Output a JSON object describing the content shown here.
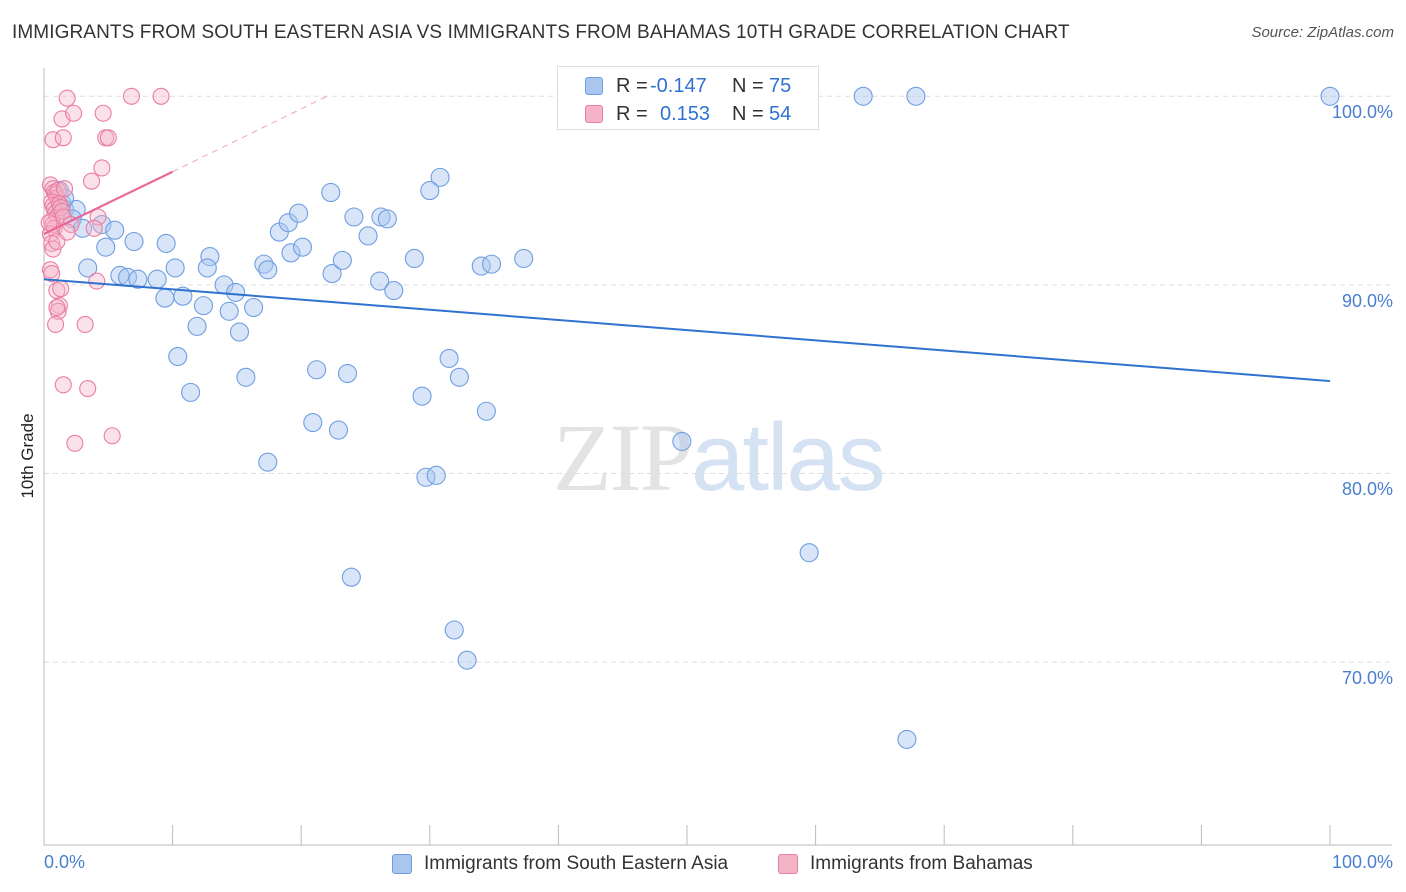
{
  "title": "IMMIGRANTS FROM SOUTH EASTERN ASIA VS IMMIGRANTS FROM BAHAMAS 10TH GRADE CORRELATION CHART",
  "source": "Source: ZipAtlas.com",
  "watermark": {
    "zip": "ZIP",
    "atlas": "atlas"
  },
  "legend_top": {
    "rows": [
      {
        "r_label": "R =",
        "r_value": "-0.147",
        "n_label": "N =",
        "n_value": "75"
      },
      {
        "r_label": "R =",
        "r_value": "0.153",
        "n_label": "N =",
        "n_value": "54"
      }
    ]
  },
  "legend_bottom": {
    "items": [
      {
        "label": "Immigrants from South Eastern Asia"
      },
      {
        "label": "Immigrants from Bahamas"
      }
    ]
  },
  "colors": {
    "blue_fill": "#a9c6ef",
    "blue_stroke": "#6f9ee0",
    "blue_line": "#2f72d0",
    "pink_fill": "#f5b3c8",
    "pink_stroke": "#ea7ea3",
    "pink_line": "#e8689a",
    "tick_label": "#4a7fd0",
    "grid": "#dddddd"
  },
  "chart_data": {
    "type": "scatter",
    "title": "IMMIGRANTS FROM SOUTH EASTERN ASIA VS IMMIGRANTS FROM BAHAMAS 10TH GRADE CORRELATION CHART",
    "xlabel": "",
    "ylabel": "10th Grade",
    "xlim": [
      0,
      100
    ],
    "ylim": [
      60.3,
      101.5
    ],
    "x_tick_labels": [
      {
        "value": 0,
        "label": "0.0%"
      },
      {
        "value": 100,
        "label": "100.0%"
      }
    ],
    "y_tick_labels": [
      {
        "value": 100,
        "label": "100.0%"
      },
      {
        "value": 90,
        "label": "90.0%"
      },
      {
        "value": 80,
        "label": "80.0%"
      },
      {
        "value": 70,
        "label": "70.0%"
      }
    ],
    "grid": true,
    "legend_position": "top-center",
    "series": [
      {
        "name": "Immigrants from South Eastern Asia",
        "color": "blue",
        "trend": {
          "x0": 0,
          "y0": 90.3,
          "x1": 100,
          "y1": 84.9
        },
        "points": [
          [
            1.2,
            95.0
          ],
          [
            1.4,
            94.3
          ],
          [
            1.6,
            94.0
          ],
          [
            2.5,
            94.0
          ],
          [
            2.2,
            93.5
          ],
          [
            3.0,
            93.0
          ],
          [
            4.8,
            92.0
          ],
          [
            4.5,
            93.2
          ],
          [
            5.5,
            92.9
          ],
          [
            7.0,
            92.3
          ],
          [
            9.5,
            92.2
          ],
          [
            3.4,
            90.9
          ],
          [
            5.9,
            90.5
          ],
          [
            6.5,
            90.4
          ],
          [
            7.3,
            90.3
          ],
          [
            8.8,
            90.3
          ],
          [
            10.2,
            90.9
          ],
          [
            12.9,
            91.5
          ],
          [
            12.7,
            90.9
          ],
          [
            14.0,
            90.0
          ],
          [
            9.4,
            89.3
          ],
          [
            10.8,
            89.4
          ],
          [
            12.4,
            88.9
          ],
          [
            14.4,
            88.6
          ],
          [
            14.9,
            89.6
          ],
          [
            16.3,
            88.8
          ],
          [
            15.2,
            87.5
          ],
          [
            11.9,
            87.8
          ],
          [
            10.4,
            86.2
          ],
          [
            11.4,
            84.3
          ],
          [
            15.7,
            85.1
          ],
          [
            17.1,
            91.1
          ],
          [
            17.4,
            90.8
          ],
          [
            18.3,
            92.8
          ],
          [
            19.2,
            91.7
          ],
          [
            19.0,
            93.3
          ],
          [
            20.1,
            92.0
          ],
          [
            19.8,
            93.8
          ],
          [
            22.4,
            90.6
          ],
          [
            23.2,
            91.3
          ],
          [
            25.2,
            92.6
          ],
          [
            24.1,
            93.6
          ],
          [
            26.2,
            93.6
          ],
          [
            26.7,
            93.5
          ],
          [
            23.6,
            85.3
          ],
          [
            21.2,
            85.5
          ],
          [
            20.9,
            82.7
          ],
          [
            22.9,
            82.3
          ],
          [
            17.4,
            80.6
          ],
          [
            26.1,
            90.2
          ],
          [
            27.2,
            89.7
          ],
          [
            28.8,
            91.4
          ],
          [
            29.4,
            84.1
          ],
          [
            30.8,
            95.7
          ],
          [
            30.0,
            95.0
          ],
          [
            22.3,
            94.9
          ],
          [
            31.5,
            86.1
          ],
          [
            32.3,
            85.1
          ],
          [
            34.4,
            83.3
          ],
          [
            34.0,
            91.0
          ],
          [
            34.8,
            91.1
          ],
          [
            37.3,
            91.4
          ],
          [
            29.7,
            79.8
          ],
          [
            30.5,
            79.9
          ],
          [
            23.9,
            74.5
          ],
          [
            31.9,
            71.7
          ],
          [
            32.9,
            70.1
          ],
          [
            49.6,
            81.7
          ],
          [
            59.5,
            75.8
          ],
          [
            67.1,
            65.9
          ],
          [
            63.7,
            100.0
          ],
          [
            67.8,
            100.0
          ],
          [
            42.2,
            100.0
          ],
          [
            100.0,
            100.0
          ],
          [
            1.6,
            94.6
          ]
        ]
      },
      {
        "name": "Immigrants from Bahamas",
        "color": "pink",
        "trend": {
          "x0": 0,
          "y0": 92.7,
          "x1": 10,
          "y1": 96.0
        },
        "trend_dashed": {
          "x0": 10,
          "y0": 96.0,
          "x1": 22,
          "y1": 100.0
        },
        "points": [
          [
            0.5,
            95.3
          ],
          [
            0.7,
            95.1
          ],
          [
            0.8,
            94.9
          ],
          [
            0.9,
            94.8
          ],
          [
            1.0,
            94.6
          ],
          [
            1.1,
            95.0
          ],
          [
            0.6,
            94.4
          ],
          [
            0.7,
            94.2
          ],
          [
            0.8,
            94.0
          ],
          [
            0.9,
            93.8
          ],
          [
            1.0,
            93.6
          ],
          [
            0.6,
            93.4
          ],
          [
            0.7,
            93.2
          ],
          [
            0.8,
            93.0
          ],
          [
            1.2,
            94.3
          ],
          [
            1.3,
            94.1
          ],
          [
            1.4,
            93.9
          ],
          [
            1.5,
            93.6
          ],
          [
            1.6,
            95.1
          ],
          [
            0.5,
            92.7
          ],
          [
            0.6,
            92.2
          ],
          [
            0.7,
            91.9
          ],
          [
            1.0,
            92.3
          ],
          [
            0.5,
            90.8
          ],
          [
            0.6,
            90.6
          ],
          [
            1.0,
            89.7
          ],
          [
            1.3,
            89.8
          ],
          [
            1.2,
            88.9
          ],
          [
            1.1,
            88.6
          ],
          [
            1.0,
            88.8
          ],
          [
            0.9,
            87.9
          ],
          [
            3.2,
            87.9
          ],
          [
            4.1,
            90.2
          ],
          [
            1.5,
            84.7
          ],
          [
            3.4,
            84.5
          ],
          [
            2.4,
            81.6
          ],
          [
            5.3,
            82.0
          ],
          [
            0.7,
            97.7
          ],
          [
            1.5,
            97.8
          ],
          [
            4.8,
            97.8
          ],
          [
            5.0,
            97.8
          ],
          [
            1.4,
            98.8
          ],
          [
            2.3,
            99.1
          ],
          [
            4.6,
            99.1
          ],
          [
            1.8,
            99.9
          ],
          [
            6.8,
            100.0
          ],
          [
            9.1,
            100.0
          ],
          [
            3.7,
            95.5
          ],
          [
            4.5,
            96.2
          ],
          [
            4.2,
            93.6
          ],
          [
            3.9,
            93.0
          ],
          [
            2.1,
            93.2
          ],
          [
            1.8,
            92.8
          ],
          [
            0.4,
            93.3
          ]
        ]
      }
    ]
  }
}
